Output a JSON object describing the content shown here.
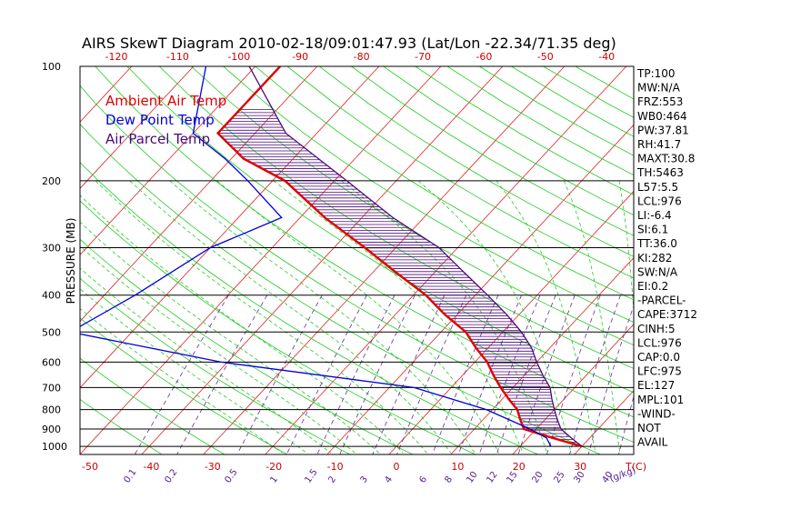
{
  "chart_data": {
    "type": "line",
    "title": "AIRS SkewT Diagram 2010-02-18/09:01:47.93 (Lat/Lon -22.34/71.35 deg)",
    "ylabel": "PRESSURE (MB)",
    "xlabel_bottom": "T(C)",
    "xlabel_mixing": "(g/kg)",
    "pressure_ticks": [
      100,
      200,
      300,
      400,
      500,
      600,
      700,
      800,
      900,
      1000
    ],
    "top_temp_ticks": [
      "-120",
      "-110",
      "-100",
      "-90",
      "-80",
      "-70",
      "-60",
      "-50",
      "-40"
    ],
    "bottom_temp_ticks": [
      "-50",
      "-40",
      "-30",
      "-20",
      "-10",
      "0",
      "10",
      "20",
      "30"
    ],
    "mixing_ratio_labels": [
      "0.1",
      "0.2",
      "0.5",
      "1",
      "1.5",
      "2",
      "3",
      "4",
      "6",
      "8",
      "10",
      "12",
      "15",
      "20",
      "25",
      "30",
      "40"
    ],
    "legend": [
      {
        "name": "Ambient Air Temp",
        "color": "#e00000"
      },
      {
        "name": "Dew Point Temp",
        "color": "#0000dd"
      },
      {
        "name": "Air Parcel Temp",
        "color": "#4b0a7a"
      }
    ],
    "series": [
      {
        "name": "Ambient Air Temp",
        "color": "#e00000",
        "points": [
          {
            "p": 100,
            "t": -76
          },
          {
            "p": 150,
            "t": -76
          },
          {
            "p": 175,
            "t": -68
          },
          {
            "p": 200,
            "t": -58
          },
          {
            "p": 250,
            "t": -46
          },
          {
            "p": 300,
            "t": -35
          },
          {
            "p": 350,
            "t": -26
          },
          {
            "p": 400,
            "t": -18
          },
          {
            "p": 450,
            "t": -12
          },
          {
            "p": 500,
            "t": -6
          },
          {
            "p": 550,
            "t": -2
          },
          {
            "p": 600,
            "t": 2
          },
          {
            "p": 650,
            "t": 5
          },
          {
            "p": 700,
            "t": 8
          },
          {
            "p": 750,
            "t": 11
          },
          {
            "p": 800,
            "t": 14
          },
          {
            "p": 850,
            "t": 16
          },
          {
            "p": 900,
            "t": 18
          },
          {
            "p": 950,
            "t": 24
          },
          {
            "p": 1000,
            "t": 30
          }
        ]
      },
      {
        "name": "Dew Point Temp",
        "color": "#0000dd",
        "points": [
          {
            "p": 100,
            "t": -88
          },
          {
            "p": 150,
            "t": -80
          },
          {
            "p": 175,
            "t": -71
          },
          {
            "p": 200,
            "t": -64
          },
          {
            "p": 250,
            "t": -53
          },
          {
            "p": 300,
            "t": -60
          },
          {
            "p": 400,
            "t": -65
          },
          {
            "p": 500,
            "t": -70
          },
          {
            "p": 600,
            "t": -41
          },
          {
            "p": 700,
            "t": -6
          },
          {
            "p": 800,
            "t": 9
          },
          {
            "p": 900,
            "t": 19
          },
          {
            "p": 950,
            "t": 23
          },
          {
            "p": 1000,
            "t": 25
          }
        ]
      },
      {
        "name": "Air Parcel Temp",
        "color": "#4b0a7a",
        "points": [
          {
            "p": 100,
            "t": -81
          },
          {
            "p": 150,
            "t": -65
          },
          {
            "p": 200,
            "t": -48
          },
          {
            "p": 250,
            "t": -35
          },
          {
            "p": 300,
            "t": -23
          },
          {
            "p": 350,
            "t": -15
          },
          {
            "p": 400,
            "t": -8
          },
          {
            "p": 450,
            "t": -2
          },
          {
            "p": 500,
            "t": 3
          },
          {
            "p": 550,
            "t": 7
          },
          {
            "p": 600,
            "t": 10
          },
          {
            "p": 650,
            "t": 13
          },
          {
            "p": 700,
            "t": 16
          },
          {
            "p": 750,
            "t": 18
          },
          {
            "p": 800,
            "t": 20
          },
          {
            "p": 850,
            "t": 22
          },
          {
            "p": 900,
            "t": 24
          },
          {
            "p": 950,
            "t": 27
          },
          {
            "p": 1000,
            "t": 30
          }
        ]
      }
    ],
    "indices": [
      "TP:100",
      "MW:N/A",
      "FRZ:553",
      "WB0:464",
      "PW:37.81",
      "RH:41.7",
      "MAXT:30.8",
      "TH:5463",
      "L57:5.5",
      "LCL:976",
      "LI:-6.4",
      "SI:6.1",
      "TT:36.0",
      "KI:282",
      "SW:N/A",
      "EI:0.2",
      "-PARCEL-",
      "CAPE:3712",
      "CINH:5",
      "LCL:976",
      "CAP:0.0",
      "LFC:975",
      "EL:127",
      "MPL:101",
      "-WIND-",
      "NOT",
      "AVAIL"
    ]
  }
}
